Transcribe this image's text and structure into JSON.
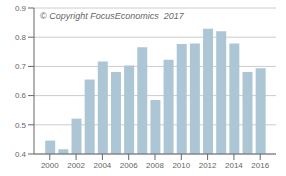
{
  "chart_data": {
    "type": "bar",
    "x": [
      2000,
      2001,
      2002,
      2003,
      2004,
      2005,
      2006,
      2007,
      2008,
      2009,
      2010,
      2011,
      2012,
      2013,
      2014,
      2015,
      2016
    ],
    "values": [
      0.446,
      0.416,
      0.521,
      0.655,
      0.717,
      0.681,
      0.703,
      0.766,
      0.585,
      0.723,
      0.777,
      0.778,
      0.829,
      0.82,
      0.778,
      0.681,
      0.694
    ],
    "color": "#adc6d6",
    "xlim": [
      1998.8,
      2017.2
    ],
    "xticks": [
      2000,
      2002,
      2004,
      2006,
      2008,
      2010,
      2012,
      2014,
      2016
    ],
    "ylim": [
      0.4,
      0.9
    ],
    "yticks": [
      0.4,
      0.5,
      0.6,
      0.7,
      0.8,
      0.9
    ],
    "grid": true,
    "annotations": [
      "© Copyright FocusEconomics  2017"
    ]
  }
}
